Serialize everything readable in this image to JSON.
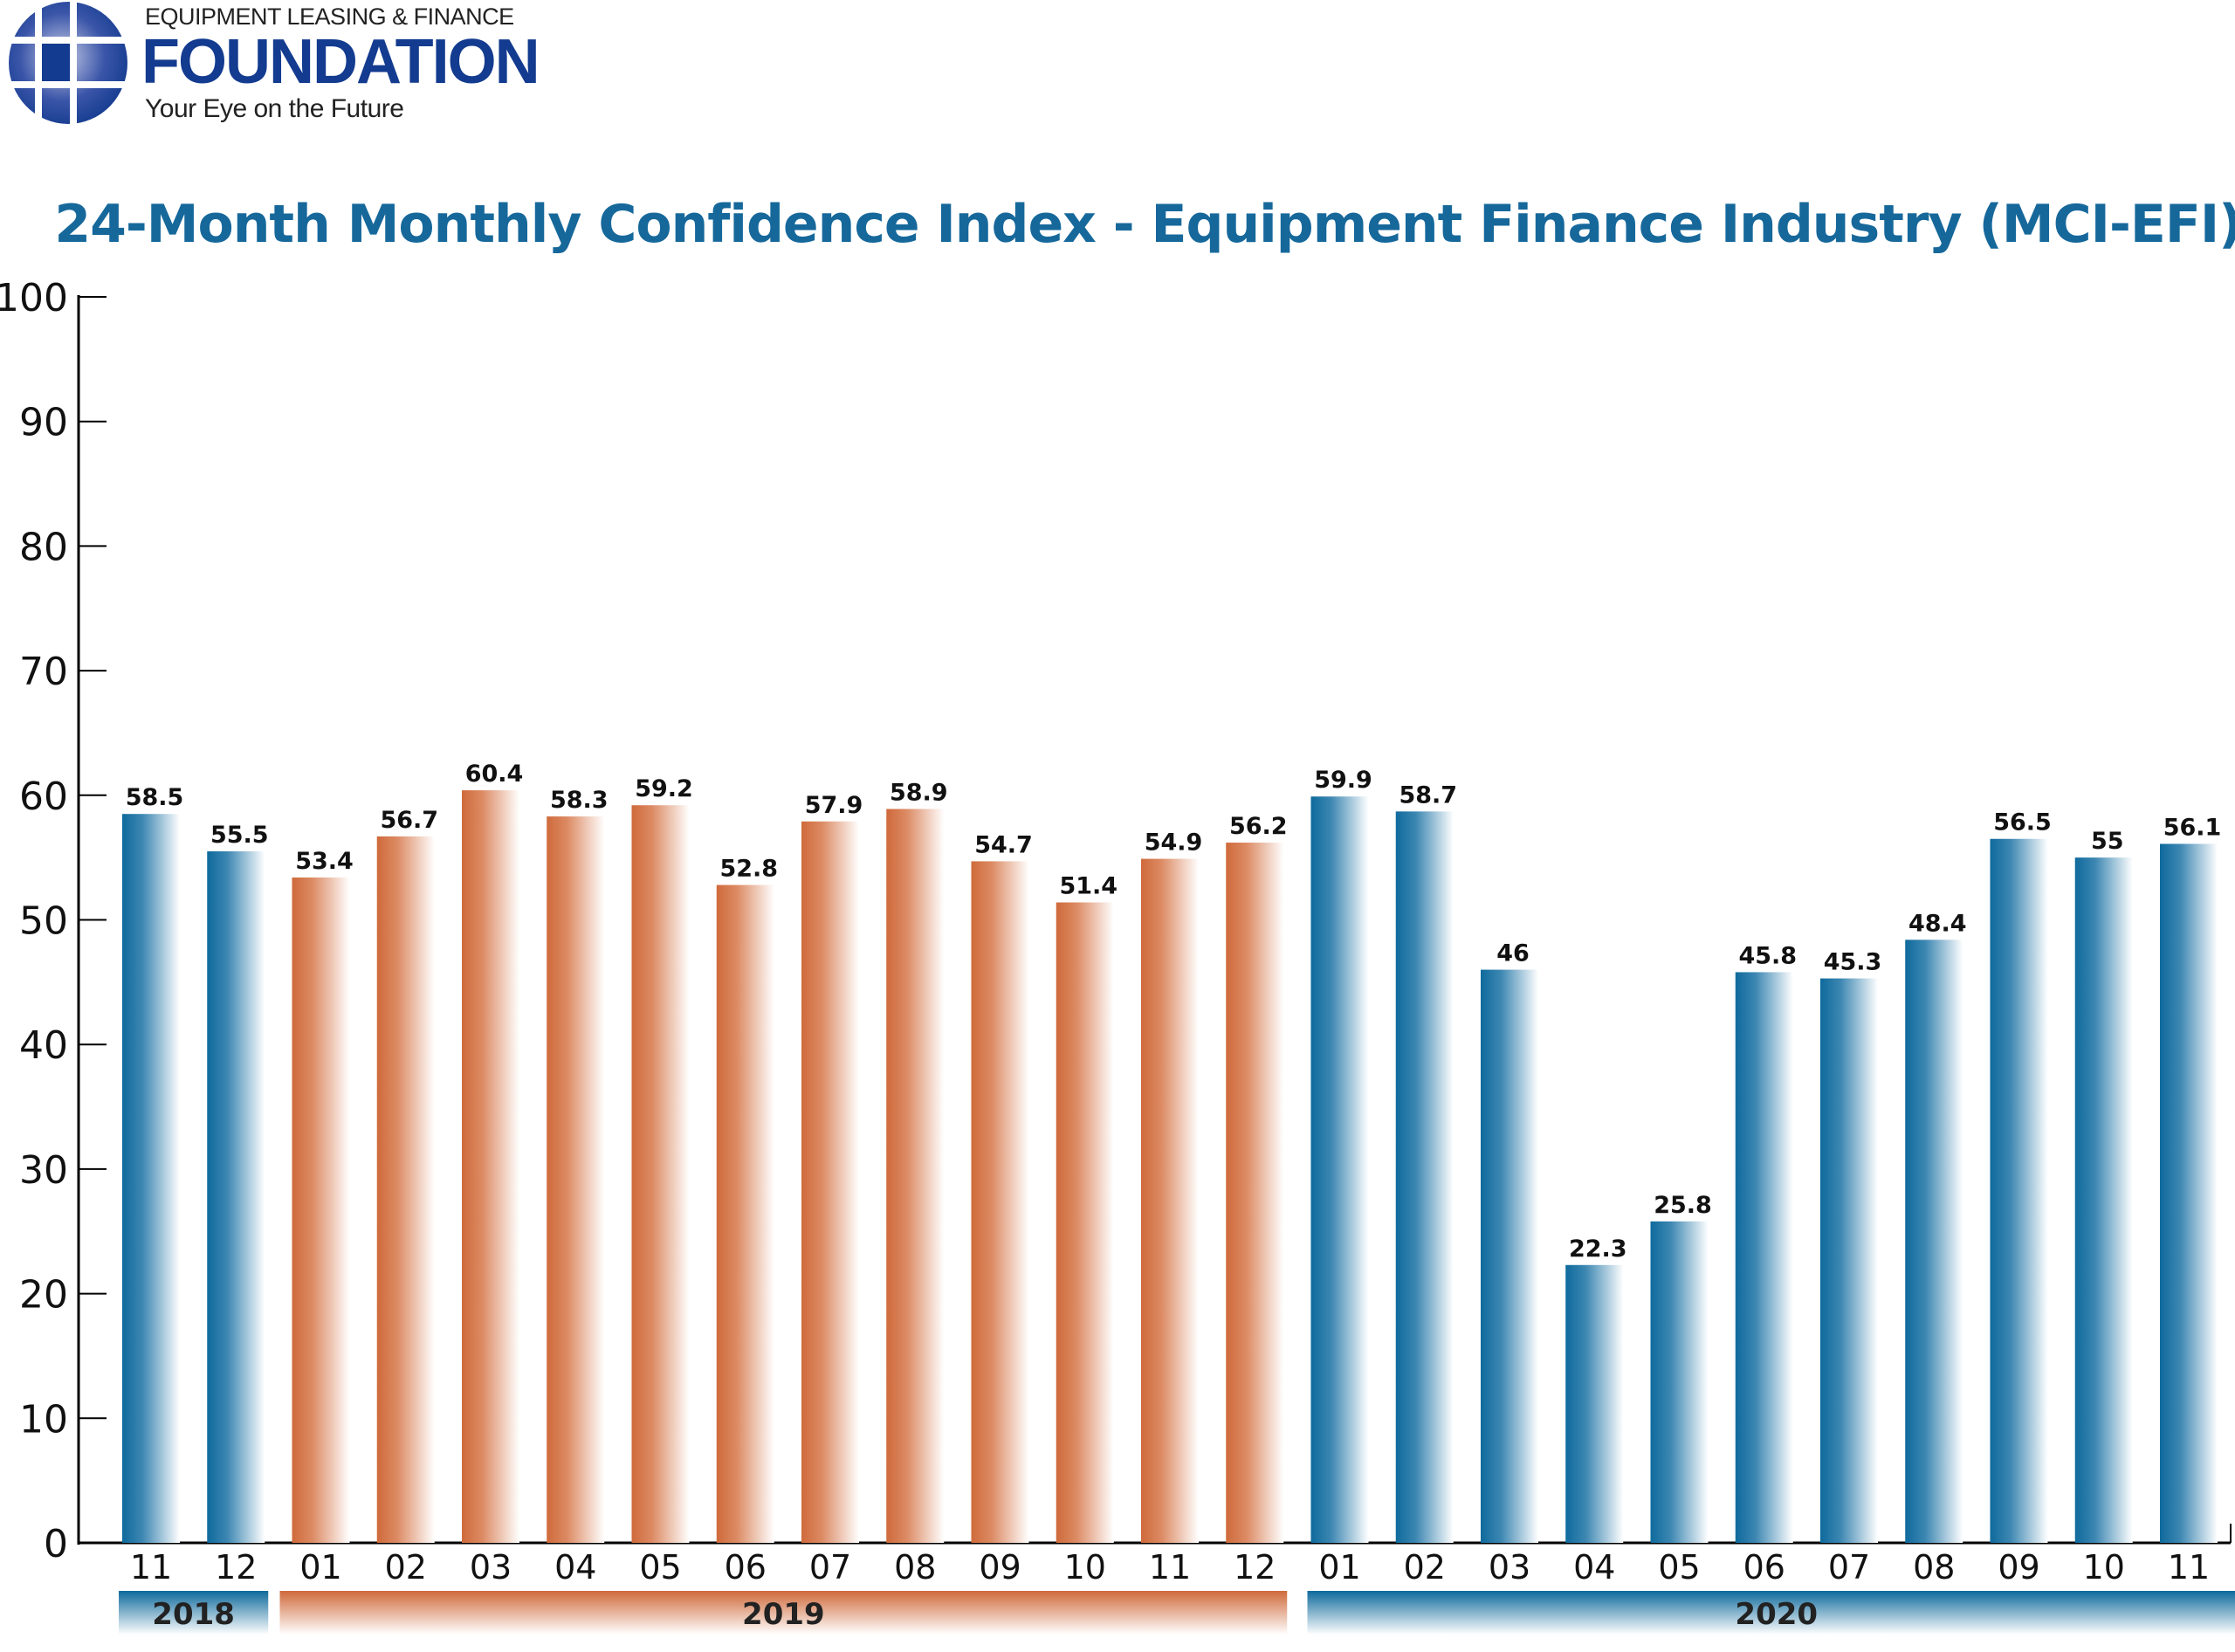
{
  "logo": {
    "line1": "EQUIPMENT LEASING & FINANCE",
    "line2": "FOUNDATION",
    "tagline": "Your Eye on the Future"
  },
  "colors": {
    "y2018": "#0e6a9c",
    "y2019": "#cf6a3b",
    "y2020": "#0e6a9c",
    "title": "#16689b",
    "logo": "#133b8f"
  },
  "chart_data": {
    "type": "bar",
    "title": "24-Month Monthly Confidence Index - Equipment Finance Industry (MCI-EFI)",
    "xlabel": "",
    "ylabel": "",
    "ylim": [
      0,
      100
    ],
    "yticks": [
      0,
      10,
      20,
      30,
      40,
      50,
      60,
      70,
      80,
      90,
      100
    ],
    "grid": false,
    "categories": [
      "11",
      "12",
      "01",
      "02",
      "03",
      "04",
      "05",
      "06",
      "07",
      "08",
      "09",
      "10",
      "11",
      "12",
      "01",
      "02",
      "03",
      "04",
      "05",
      "06",
      "07",
      "08",
      "09",
      "10",
      "11"
    ],
    "years": [
      "2018",
      "2018",
      "2019",
      "2019",
      "2019",
      "2019",
      "2019",
      "2019",
      "2019",
      "2019",
      "2019",
      "2019",
      "2019",
      "2019",
      "2020",
      "2020",
      "2020",
      "2020",
      "2020",
      "2020",
      "2020",
      "2020",
      "2020",
      "2020",
      "2020"
    ],
    "values": [
      58.5,
      55.5,
      53.4,
      56.7,
      60.4,
      58.3,
      59.2,
      52.8,
      57.9,
      58.9,
      54.7,
      51.4,
      54.9,
      56.2,
      59.9,
      58.7,
      46,
      22.3,
      25.8,
      45.8,
      45.3,
      48.4,
      56.5,
      55,
      56.1
    ],
    "year_groups": [
      "2018",
      "2019",
      "2020"
    ]
  }
}
